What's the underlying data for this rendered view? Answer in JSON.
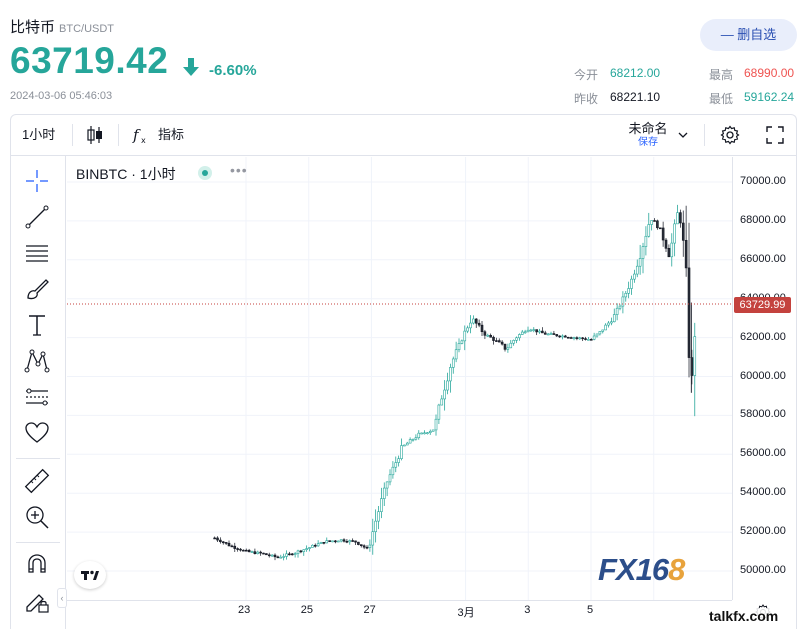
{
  "header": {
    "name": "比特币",
    "pair": "BTC/USDT",
    "price": "63719.42",
    "change": "-6.60%",
    "datetime": "2024-03-06 05:46:03",
    "fav_button": "— 删自选"
  },
  "stats": {
    "open_label": "今开",
    "open_value": "68212.00",
    "high_label": "最高",
    "high_value": "68990.00",
    "prev_label": "昨收",
    "prev_value": "68221.10",
    "low_label": "最低",
    "low_value": "59162.24"
  },
  "toolbar": {
    "interval": "1小时",
    "indicators": "指标",
    "layout_name": "未命名",
    "save": "保存"
  },
  "chart_data": {
    "type": "candlestick",
    "symbol_label": "BINBTC · 1小时",
    "current_price_label": "63729.99",
    "y_ticks": [
      "70000.00",
      "68000.00",
      "66000.00",
      "64000.00",
      "62000.00",
      "60000.00",
      "58000.00",
      "56000.00",
      "54000.00",
      "52000.00",
      "50000.00"
    ],
    "x_ticks": [
      "23",
      "25",
      "27",
      "3月",
      "3",
      "5"
    ],
    "ylim": [
      49000,
      71000
    ],
    "x_range_days": [
      20.8,
      37.5
    ],
    "series": [
      {
        "x": 22.0,
        "y": 51700
      },
      {
        "x": 22.5,
        "y": 51300
      },
      {
        "x": 23.0,
        "y": 51000
      },
      {
        "x": 23.5,
        "y": 50900
      },
      {
        "x": 24.0,
        "y": 50700
      },
      {
        "x": 24.5,
        "y": 50900
      },
      {
        "x": 25.0,
        "y": 51200
      },
      {
        "x": 25.5,
        "y": 51500
      },
      {
        "x": 26.0,
        "y": 51600
      },
      {
        "x": 26.5,
        "y": 51500
      },
      {
        "x": 26.9,
        "y": 51100
      },
      {
        "x": 27.1,
        "y": 52400
      },
      {
        "x": 27.5,
        "y": 54600
      },
      {
        "x": 28.0,
        "y": 56400
      },
      {
        "x": 28.5,
        "y": 57000
      },
      {
        "x": 29.0,
        "y": 57300
      },
      {
        "x": 29.2,
        "y": 58700
      },
      {
        "x": 29.5,
        "y": 60500
      },
      {
        "x": 29.9,
        "y": 62000
      },
      {
        "x": 30.2,
        "y": 63000
      },
      {
        "x": 30.6,
        "y": 62200
      },
      {
        "x": 31.0,
        "y": 61800
      },
      {
        "x": 31.3,
        "y": 61400
      },
      {
        "x": 31.6,
        "y": 62000
      },
      {
        "x": 32.0,
        "y": 62500
      },
      {
        "x": 32.5,
        "y": 62200
      },
      {
        "x": 33.0,
        "y": 62100
      },
      {
        "x": 33.5,
        "y": 62000
      },
      {
        "x": 34.0,
        "y": 61900
      },
      {
        "x": 34.3,
        "y": 62300
      },
      {
        "x": 34.7,
        "y": 63000
      },
      {
        "x": 35.0,
        "y": 63900
      },
      {
        "x": 35.3,
        "y": 65000
      },
      {
        "x": 35.6,
        "y": 66500
      },
      {
        "x": 35.9,
        "y": 68200
      },
      {
        "x": 36.2,
        "y": 67600
      },
      {
        "x": 36.5,
        "y": 66200
      },
      {
        "x": 36.8,
        "y": 68700
      },
      {
        "x": 37.0,
        "y": 66000
      },
      {
        "x": 37.2,
        "y": 59300
      },
      {
        "x": 37.35,
        "y": 63700
      }
    ]
  },
  "watermark": {
    "brand_a": "FX16",
    "brand_b": "8",
    "site": "talkfx.com"
  }
}
